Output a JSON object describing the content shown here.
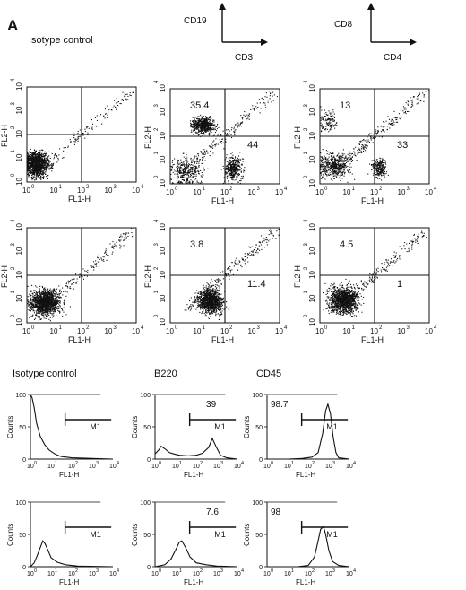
{
  "panel_label": "A",
  "headers": {
    "isotype_top": "Isotype  control",
    "cd19": "CD19",
    "cd3": "CD3",
    "cd8": "CD8",
    "cd4": "CD4",
    "isotype_bottom": "Isotype control",
    "b220": "B220",
    "cd45": "CD45"
  },
  "axis_text": {
    "fl1": "FL1-H",
    "fl2": "FL2-H",
    "counts": "Counts",
    "marker": "M1",
    "dec_base": "10",
    "dec_exps": [
      "0",
      "1",
      "2",
      "3",
      "4"
    ],
    "hist_yticks": [
      "0",
      "50",
      "100"
    ]
  },
  "chart_data": [
    {
      "type": "scatter",
      "id": "dot-isotype-1",
      "xlabel": "FL1-H",
      "ylabel": "FL2-H",
      "xscale": "log",
      "yscale": "log",
      "xlim": [
        1,
        10000
      ],
      "ylim": [
        1,
        10000
      ],
      "quadrant_values": {}
    },
    {
      "type": "scatter",
      "id": "dot-cd19-cd3-1",
      "xlabel": "FL1-H",
      "ylabel": "FL2-H",
      "xscale": "log",
      "yscale": "log",
      "xlim": [
        1,
        10000
      ],
      "ylim": [
        1,
        10000
      ],
      "quadrant_values": {
        "upper_left": "35.4",
        "lower_right": "44"
      }
    },
    {
      "type": "scatter",
      "id": "dot-cd8-cd4-1",
      "xlabel": "FL1-H",
      "ylabel": "FL2-H",
      "xscale": "log",
      "yscale": "log",
      "xlim": [
        1,
        10000
      ],
      "ylim": [
        1,
        10000
      ],
      "quadrant_values": {
        "upper_left": "13",
        "lower_right": "33"
      }
    },
    {
      "type": "scatter",
      "id": "dot-isotype-2",
      "xlabel": "FL1-H",
      "ylabel": "FL2-H",
      "xscale": "log",
      "yscale": "log",
      "xlim": [
        1,
        10000
      ],
      "ylim": [
        1,
        10000
      ],
      "quadrant_values": {}
    },
    {
      "type": "scatter",
      "id": "dot-cd19-cd3-2",
      "xlabel": "FL1-H",
      "ylabel": "FL2-H",
      "xscale": "log",
      "yscale": "log",
      "xlim": [
        1,
        10000
      ],
      "ylim": [
        1,
        10000
      ],
      "quadrant_values": {
        "upper_left": "3.8",
        "lower_right": "11.4"
      }
    },
    {
      "type": "scatter",
      "id": "dot-cd8-cd4-2",
      "xlabel": "FL1-H",
      "ylabel": "FL2-H",
      "xscale": "log",
      "yscale": "log",
      "xlim": [
        1,
        10000
      ],
      "ylim": [
        1,
        10000
      ],
      "quadrant_values": {
        "upper_left": "4.5",
        "lower_right": "1"
      }
    },
    {
      "type": "line",
      "id": "hist-isotype-1",
      "xlabel": "FL1-H",
      "ylabel": "Counts",
      "xscale": "log",
      "xlim": [
        1,
        10000
      ],
      "ylim": [
        0,
        100
      ],
      "gate": "M1",
      "value": "",
      "x": [
        1,
        1.2,
        1.5,
        2,
        3,
        5,
        8,
        15,
        30,
        100,
        1000,
        10000
      ],
      "y": [
        100,
        95,
        80,
        55,
        35,
        22,
        14,
        8,
        4,
        2,
        1,
        0
      ]
    },
    {
      "type": "line",
      "id": "hist-b220-1",
      "xlabel": "FL1-H",
      "ylabel": "Counts",
      "xscale": "log",
      "xlim": [
        1,
        10000
      ],
      "ylim": [
        0,
        100
      ],
      "gate": "M1",
      "value": "39",
      "x": [
        1,
        1.5,
        2,
        3,
        5,
        8,
        15,
        40,
        100,
        200,
        400,
        600,
        900,
        1500,
        3000,
        10000
      ],
      "y": [
        8,
        14,
        20,
        16,
        10,
        8,
        6,
        5,
        6,
        9,
        18,
        32,
        20,
        6,
        2,
        0
      ]
    },
    {
      "type": "line",
      "id": "hist-cd45-1",
      "xlabel": "FL1-H",
      "ylabel": "Counts",
      "xscale": "log",
      "xlim": [
        1,
        10000
      ],
      "ylim": [
        0,
        100
      ],
      "gate": "M1",
      "value": "98.7",
      "x": [
        1,
        10,
        50,
        150,
        300,
        500,
        700,
        900,
        1200,
        1600,
        2200,
        3000,
        10000
      ],
      "y": [
        0,
        0,
        1,
        3,
        10,
        40,
        75,
        85,
        70,
        35,
        10,
        2,
        0
      ]
    },
    {
      "type": "line",
      "id": "hist-isotype-2",
      "xlabel": "FL1-H",
      "ylabel": "Counts",
      "xscale": "log",
      "xlim": [
        1,
        10000
      ],
      "ylim": [
        0,
        100
      ],
      "gate": "M1",
      "value": "",
      "x": [
        1,
        1.5,
        2,
        3,
        4,
        5,
        7,
        10,
        20,
        50,
        200,
        10000
      ],
      "y": [
        0,
        6,
        15,
        30,
        40,
        36,
        26,
        14,
        7,
        3,
        1,
        0
      ]
    },
    {
      "type": "line",
      "id": "hist-b220-2",
      "xlabel": "FL1-H",
      "ylabel": "Counts",
      "xscale": "log",
      "xlim": [
        1,
        10000
      ],
      "ylim": [
        0,
        100
      ],
      "gate": "M1",
      "value": "7.6",
      "x": [
        1,
        3,
        6,
        10,
        15,
        20,
        30,
        50,
        100,
        300,
        1000,
        10000
      ],
      "y": [
        0,
        3,
        12,
        26,
        38,
        40,
        30,
        15,
        6,
        3,
        1,
        0
      ]
    },
    {
      "type": "line",
      "id": "hist-cd45-2",
      "xlabel": "FL1-H",
      "ylabel": "Counts",
      "xscale": "log",
      "xlim": [
        1,
        10000
      ],
      "ylim": [
        0,
        100
      ],
      "gate": "M1",
      "value": "98",
      "x": [
        1,
        30,
        100,
        200,
        300,
        400,
        550,
        700,
        1000,
        1500,
        3000,
        10000
      ],
      "y": [
        0,
        0,
        2,
        15,
        40,
        58,
        62,
        50,
        25,
        8,
        2,
        0
      ]
    }
  ]
}
